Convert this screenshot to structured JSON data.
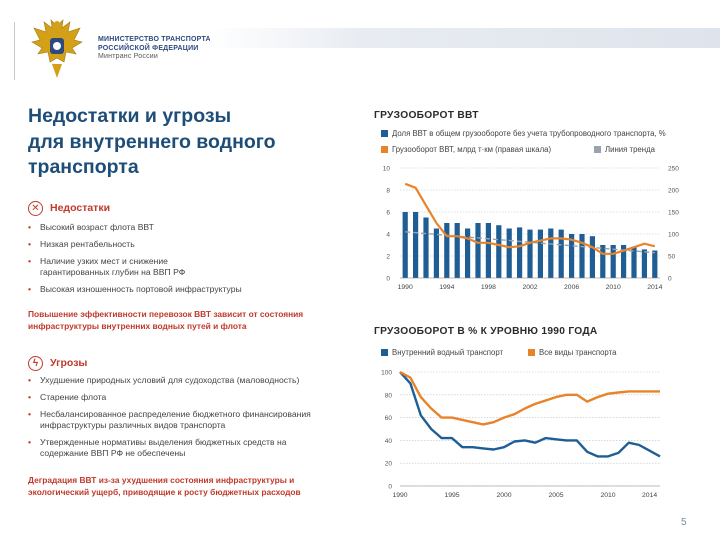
{
  "header": {
    "ministry_line1": "МИНИСТЕРСТВО ТРАНСПОРТА",
    "ministry_line2": "РОССИЙСКОЙ ФЕДЕРАЦИИ",
    "ministry_line3": "Минтранс России"
  },
  "title": {
    "line1": "Недостатки и угрозы",
    "line2": "для внутреннего водного",
    "line3": "транспорта"
  },
  "weaknesses": {
    "icon": "x-circle-icon",
    "heading": "Недостатки",
    "items": [
      "Высокий возраст флота ВВТ",
      "Низкая рентабельность",
      "Наличие узких мест и снижение гарантированных глубин на ВВП РФ",
      "Высокая изношенность портовой инфраструктуры"
    ],
    "note": "Повышение эффективности перевозок ВВТ зависит от состояния инфраструктуры внутренних водных путей и флота"
  },
  "threats": {
    "icon": "lightning-circle-icon",
    "heading": "Угрозы",
    "items": [
      "Ухудшение природных условий для судоходства (маловодность)",
      "Старение флота",
      "Несбалансированное распределение бюджетного финансирования инфраструктуры различных видов транспорта",
      "Утвержденные нормативы выделения бюджетных средств на содержание ВВП РФ не обеспечены"
    ],
    "note": "Деградация ВВТ из-за ухудшения состояния инфраструктуры и экологический ущерб, приводящие к росту бюджетных расходов"
  },
  "colors": {
    "blue": "#1f5e95",
    "orange": "#e8832a",
    "grey": "#9aa3ad",
    "red": "#c0392b",
    "navy": "#1e4d78"
  },
  "page_number": "5",
  "chart_data": [
    {
      "type": "bar",
      "title": "ГРУЗООБОРОТ ВВТ",
      "legend": {
        "bars": "Доля ВВТ в общем грузообороте без учета трубопроводного транспорта, %",
        "line": "Грузооборот ВВТ, млрд т·км (правая шкала)",
        "trend": "Линия тренда"
      },
      "years": [
        1990,
        1991,
        1992,
        1993,
        1994,
        1995,
        1996,
        1997,
        1998,
        1999,
        2000,
        2001,
        2002,
        2003,
        2004,
        2005,
        2006,
        2007,
        2008,
        2009,
        2010,
        2011,
        2012,
        2013,
        2014
      ],
      "x_tick_labels": [
        "1990",
        "1994",
        "1998",
        "2002",
        "2006",
        "2010",
        "2014"
      ],
      "share_pct": [
        6.0,
        6.0,
        5.5,
        4.5,
        5.0,
        5.0,
        4.5,
        5.0,
        5.0,
        4.8,
        4.5,
        4.6,
        4.4,
        4.4,
        4.5,
        4.4,
        4.0,
        4.0,
        3.8,
        3.0,
        3.0,
        3.0,
        2.8,
        2.6,
        2.5
      ],
      "freight_bln_tkm": [
        214,
        205,
        165,
        125,
        95,
        95,
        90,
        80,
        80,
        75,
        70,
        72,
        80,
        85,
        90,
        90,
        87,
        80,
        70,
        55,
        55,
        62,
        70,
        78,
        72
      ],
      "trend_pct": [
        4.2,
        2.3
      ],
      "y_left_ticks": [
        "0",
        "2",
        "4",
        "6",
        "8",
        "10"
      ],
      "y_left_range": [
        0,
        10
      ],
      "y_right_ticks": [
        "0",
        "50",
        "100",
        "150",
        "200",
        "250"
      ],
      "y_right_range": [
        0,
        250
      ]
    },
    {
      "type": "line",
      "title": "ГРУЗООБОРОТ В % К УРОВНЮ 1990 ГОДА",
      "series": [
        {
          "name": "Внутренний водный транспорт",
          "values": [
            100,
            90,
            62,
            50,
            42,
            42,
            34,
            34,
            33,
            32,
            34,
            39,
            40,
            38,
            42,
            41,
            40,
            40,
            30,
            26,
            26,
            29,
            38,
            36,
            31,
            26
          ]
        },
        {
          "name": "Все виды транспорта",
          "values": [
            100,
            95,
            78,
            68,
            60,
            60,
            58,
            56,
            54,
            56,
            60,
            63,
            68,
            72,
            75,
            78,
            80,
            80,
            74,
            78,
            81,
            82,
            83,
            83,
            83,
            83
          ]
        }
      ],
      "years": [
        1990,
        1991,
        1992,
        1993,
        1994,
        1995,
        1996,
        1997,
        1998,
        1999,
        2000,
        2001,
        2002,
        2003,
        2004,
        2005,
        2006,
        2007,
        2008,
        2009,
        2010,
        2011,
        2012,
        2013,
        2014,
        2015
      ],
      "x_tick_labels": [
        "1990",
        "1995",
        "2000",
        "2005",
        "2010",
        "2014"
      ],
      "y_ticks": [
        "0",
        "20",
        "40",
        "60",
        "80",
        "100"
      ],
      "y_range": [
        0,
        100
      ]
    }
  ]
}
